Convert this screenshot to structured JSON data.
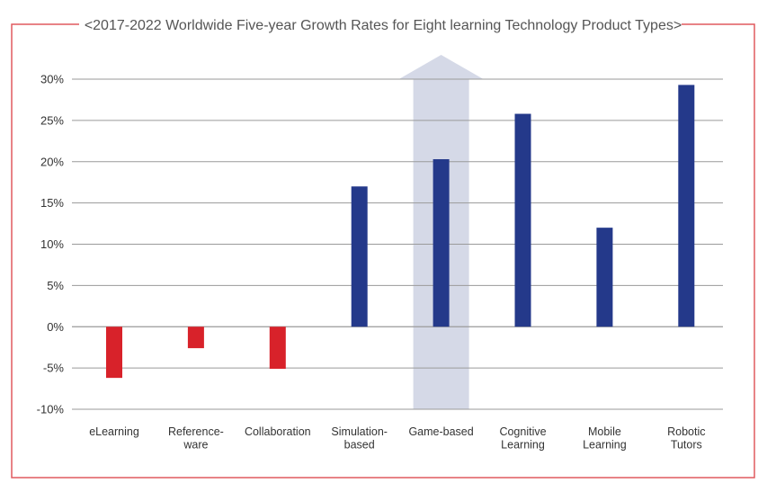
{
  "chart_data": {
    "type": "bar",
    "title": "<2017-2022 Worldwide Five-year Growth Rates for Eight learning Technology Product Types>",
    "xlabel": "",
    "ylabel": "",
    "ylim": [
      -10,
      30
    ],
    "yticks": [
      30,
      25,
      20,
      15,
      10,
      5,
      0,
      -5,
      -10
    ],
    "ytick_labels": [
      "30%",
      "25%",
      "20%",
      "15%",
      "10%",
      "5%",
      "0%",
      "-5%",
      "-10%"
    ],
    "grid": true,
    "legend": "none",
    "highlight_category": "Game-based",
    "categories": [
      [
        "eLearning"
      ],
      [
        "Reference-",
        "ware"
      ],
      [
        "Collaboration"
      ],
      [
        "Simulation-",
        "based"
      ],
      [
        "Game-based"
      ],
      [
        "Cognitive",
        "Learning"
      ],
      [
        "Mobile",
        "Learning"
      ],
      [
        "Robotic",
        "Tutors"
      ]
    ],
    "values": [
      -6.2,
      -2.6,
      -5.1,
      17.0,
      20.3,
      25.8,
      12.0,
      29.3
    ]
  },
  "colors": {
    "positive": "#24398a",
    "negative": "#d8222a",
    "frame": "#e15a5f",
    "grid": "#9a9a9a",
    "highlight": "#d5d9e7",
    "title": "#555555",
    "text": "#333333"
  }
}
